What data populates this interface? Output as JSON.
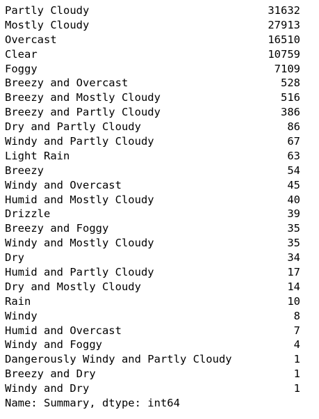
{
  "output": {
    "rows": [
      {
        "label": "Partly Cloudy",
        "count": "31632"
      },
      {
        "label": "Mostly Cloudy",
        "count": "27913"
      },
      {
        "label": "Overcast",
        "count": "16510"
      },
      {
        "label": "Clear",
        "count": "10759"
      },
      {
        "label": "Foggy",
        "count": "7109"
      },
      {
        "label": "Breezy and Overcast",
        "count": "528"
      },
      {
        "label": "Breezy and Mostly Cloudy",
        "count": "516"
      },
      {
        "label": "Breezy and Partly Cloudy",
        "count": "386"
      },
      {
        "label": "Dry and Partly Cloudy",
        "count": "86"
      },
      {
        "label": "Windy and Partly Cloudy",
        "count": "67"
      },
      {
        "label": "Light Rain",
        "count": "63"
      },
      {
        "label": "Breezy",
        "count": "54"
      },
      {
        "label": "Windy and Overcast",
        "count": "45"
      },
      {
        "label": "Humid and Mostly Cloudy",
        "count": "40"
      },
      {
        "label": "Drizzle",
        "count": "39"
      },
      {
        "label": "Breezy and Foggy",
        "count": "35"
      },
      {
        "label": "Windy and Mostly Cloudy",
        "count": "35"
      },
      {
        "label": "Dry",
        "count": "34"
      },
      {
        "label": "Humid and Partly Cloudy",
        "count": "17"
      },
      {
        "label": "Dry and Mostly Cloudy",
        "count": "14"
      },
      {
        "label": "Rain",
        "count": "10"
      },
      {
        "label": "Windy",
        "count": "8"
      },
      {
        "label": "Humid and Overcast",
        "count": "7"
      },
      {
        "label": "Windy and Foggy",
        "count": "4"
      },
      {
        "label": "Dangerously Windy and Partly Cloudy",
        "count": "1"
      },
      {
        "label": "Breezy and Dry",
        "count": "1"
      },
      {
        "label": "Windy and Dry",
        "count": "1"
      }
    ],
    "footer": "Name: Summary, dtype: int64"
  }
}
